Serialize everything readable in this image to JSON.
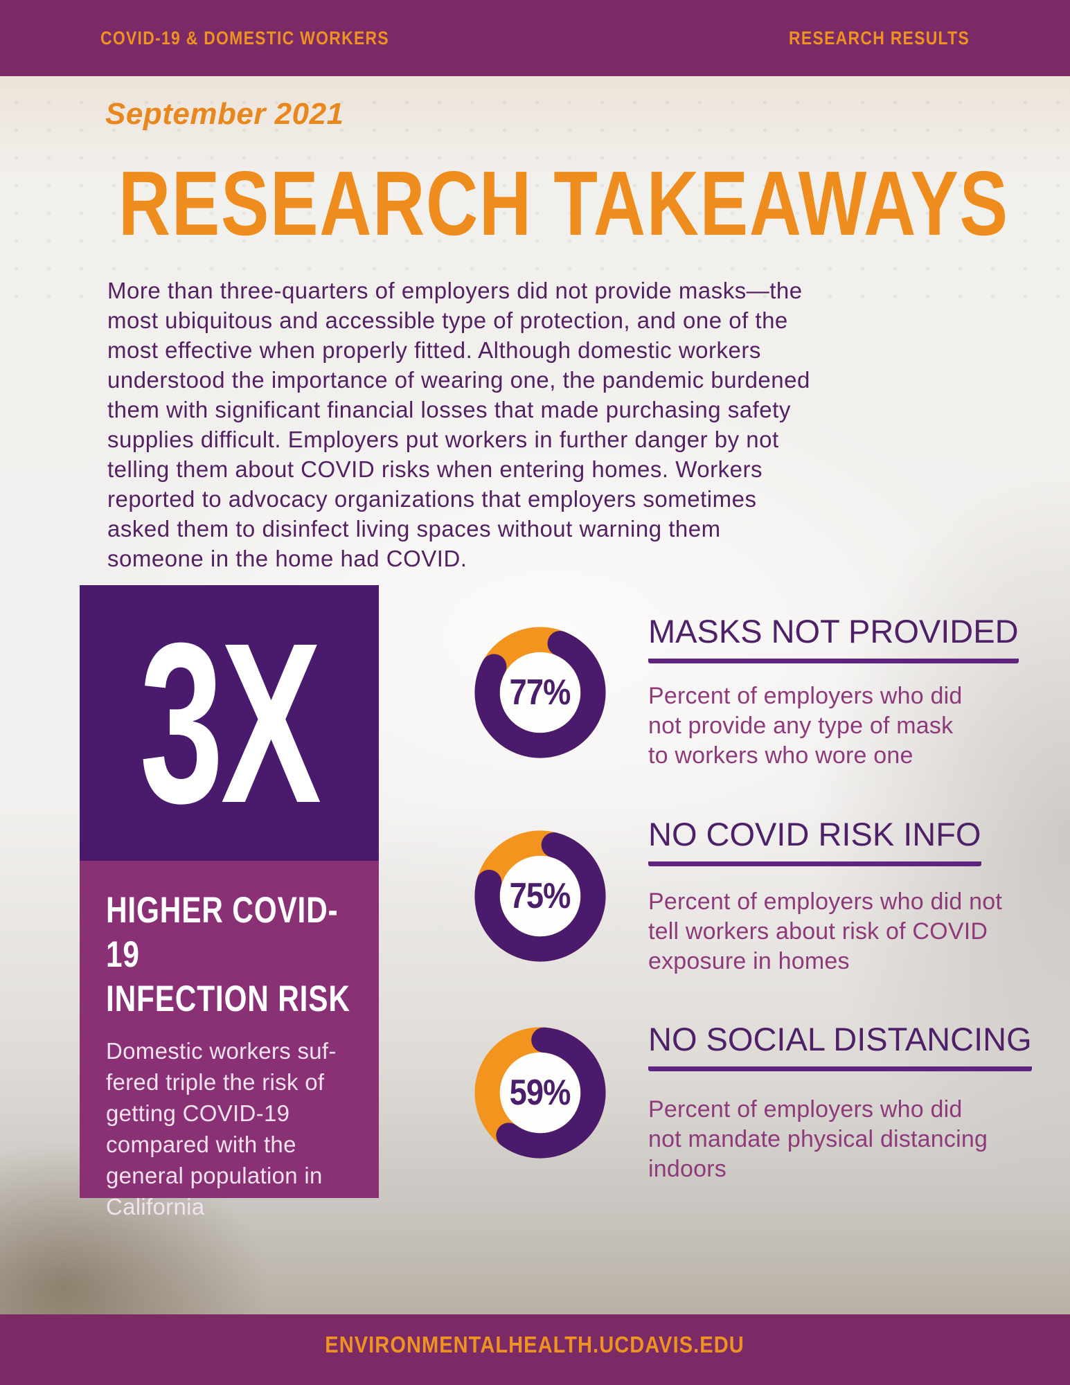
{
  "header": {
    "left": "COVID-19 & DOMESTIC WORKERS",
    "right": "RESEARCH RESULTS"
  },
  "date": "September 2021",
  "title": "RESEARCH TAKEAWAYS",
  "intro": "More than three-quarters of employers did not provide masks—the\nmost ubiquitous and accessible type of protection, and one of the\nmost effective when properly fitted. Although domestic workers\nunderstood the importance of wearing one, the pandemic burdened\nthem with significant financial losses that made purchasing safety\nsupplies difficult. Employers put workers in further danger by not\ntelling them about COVID risks when entering homes. Workers\nreported to advocacy organizations that employers sometimes\nasked them to disinfect living spaces without warning them\nsomeone in the home had COVID.",
  "highlight_box": {
    "stat": "3X",
    "heading": "HIGHER COVID-19\nINFECTION RISK",
    "body": "Domestic workers suf-\nfered triple the risk of\ngetting COVID-19\ncompared with the\ngeneral population in\nCalifornia"
  },
  "stats": [
    {
      "value": 77,
      "label": "77%",
      "heading": "MASKS NOT PROVIDED",
      "description": "Percent of employers who did\nnot provide any type of mask\nto workers who wore one"
    },
    {
      "value": 75,
      "label": "75%",
      "heading": "NO COVID RISK INFO",
      "description": "Percent of employers who did not\ntell workers about risk of COVID\nexposure in homes"
    },
    {
      "value": 59,
      "label": "59%",
      "heading": "NO SOCIAL DISTANCING",
      "description": "Percent of employers who did\nnot mandate physical distancing\nindoors"
    }
  ],
  "footer": {
    "url": "ENVIRONMENTALHEALTH.UCDAVIS.EDU"
  },
  "colors": {
    "bar_purple": "#7c2a66",
    "accent_orange": "#ee9222",
    "title_orange": "#ee8d1e",
    "date_orange": "#e8871d",
    "intro_purple": "#532062",
    "deep_purple": "#4a1b6c",
    "magenta_box": "#8a3075",
    "heading_purple": "#4d2067",
    "underline_purple": "#5e2480",
    "description_plum": "#8e3a7a",
    "donut_orange": "#f2941d",
    "donut_purple": "#4a1b6c"
  },
  "chart_data": [
    {
      "type": "pie",
      "title": "MASKS NOT PROVIDED",
      "labels": [
        "Did not provide masks",
        "Remainder"
      ],
      "values": [
        77,
        23
      ],
      "colors": [
        "#4a1b6c",
        "#f2941d"
      ],
      "center_label": "77%"
    },
    {
      "type": "pie",
      "title": "NO COVID RISK INFO",
      "labels": [
        "Did not tell workers about COVID risk",
        "Remainder"
      ],
      "values": [
        75,
        25
      ],
      "colors": [
        "#4a1b6c",
        "#f2941d"
      ],
      "center_label": "75%"
    },
    {
      "type": "pie",
      "title": "NO SOCIAL DISTANCING",
      "labels": [
        "Did not mandate physical distancing",
        "Remainder"
      ],
      "values": [
        59,
        41
      ],
      "colors": [
        "#4a1b6c",
        "#f2941d"
      ],
      "center_label": "59%"
    }
  ]
}
